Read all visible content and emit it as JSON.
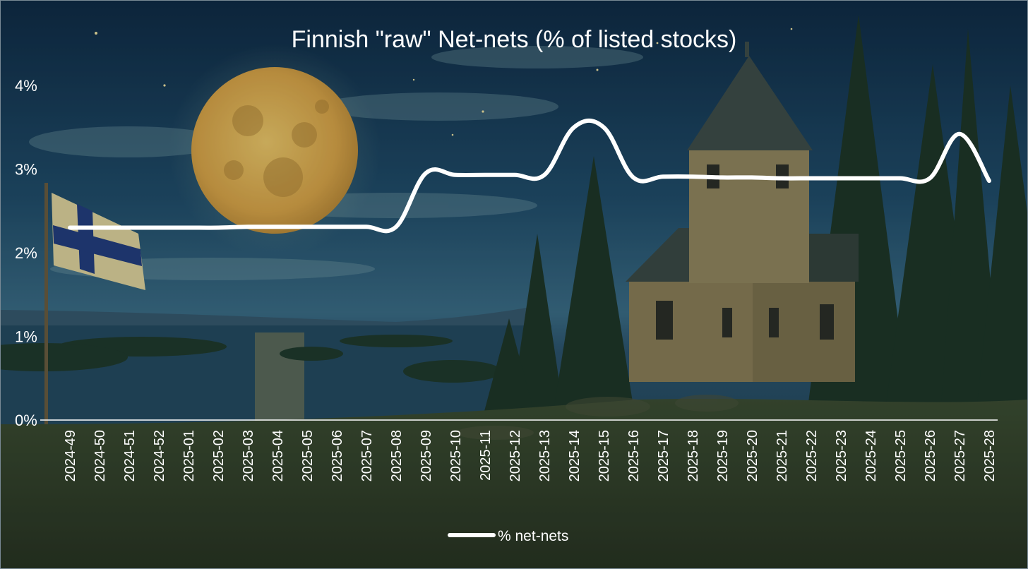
{
  "chart_data": {
    "type": "line",
    "title": "Finnish \"raw\" Net-nets (% of listed stocks)",
    "xlabel": "",
    "ylabel": "",
    "ylim": [
      0,
      4.4
    ],
    "y_ticks": [
      "0%",
      "1%",
      "2%",
      "3%",
      "4%"
    ],
    "y_tick_values": [
      0,
      1,
      2,
      3,
      4
    ],
    "categories": [
      "2024-49",
      "2024-50",
      "2024-51",
      "2024-52",
      "2025-01",
      "2025-02",
      "2025-03",
      "2025-04",
      "2025-05",
      "2025-06",
      "2025-07",
      "2025-08",
      "2025-09",
      "2025-10",
      "2025-11",
      "2025-12",
      "2025-13",
      "2025-14",
      "2025-15",
      "2025-16",
      "2025-17",
      "2025-18",
      "2025-19",
      "2025-20",
      "2025-21",
      "2025-22",
      "2025-23",
      "2025-24",
      "2025-25",
      "2025-26",
      "2025-27",
      "2025-28"
    ],
    "series": [
      {
        "name": "% net-nets",
        "color": "#ffffff",
        "values": [
          2.3,
          2.3,
          2.3,
          2.3,
          2.3,
          2.3,
          2.31,
          2.31,
          2.31,
          2.31,
          2.31,
          2.31,
          2.95,
          2.93,
          2.93,
          2.93,
          2.93,
          3.5,
          3.5,
          2.9,
          2.91,
          2.91,
          2.9,
          2.9,
          2.89,
          2.89,
          2.89,
          2.89,
          2.89,
          2.89,
          3.42,
          2.86
        ]
      }
    ],
    "grid": false,
    "legend_position": "bottom"
  },
  "colors": {
    "sky_top": "#0e2a45",
    "sky_mid": "#2b5675",
    "water": "#24485f",
    "moon": "#e2b250",
    "forest": "#1f3420",
    "church": "#9a8a5a",
    "flag_blue": "#223a7a",
    "flag_white": "#e8dca8"
  }
}
